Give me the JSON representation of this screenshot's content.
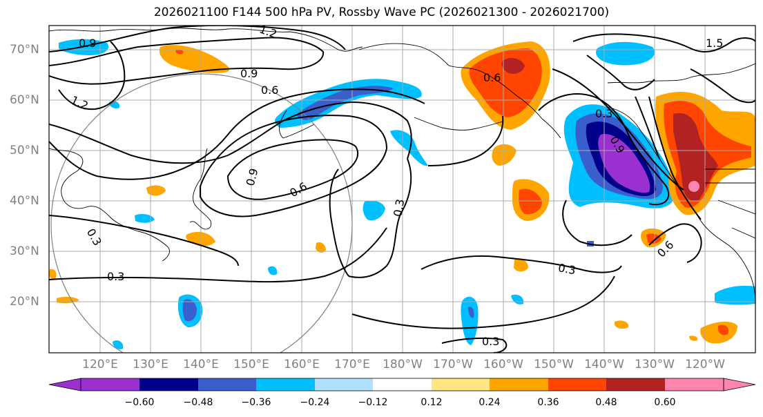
{
  "title": "2026021100 F144 500 hPa PV, Rossby Wave PC (2026021300 - 2026021700)",
  "lat_labels": [
    "70°N",
    "60°N",
    "50°N",
    "40°N",
    "30°N",
    "20°N"
  ],
  "lon_labels": [
    "120°E",
    "130°E",
    "140°E",
    "150°E",
    "160°E",
    "170°E",
    "180°W",
    "170°W",
    "160°W",
    "150°W",
    "140°W",
    "130°W",
    "120°W"
  ],
  "colorbar": {
    "ticks": [
      "−0.60",
      "−0.48",
      "−0.36",
      "−0.24",
      "−0.12",
      "0.12",
      "0.24",
      "0.36",
      "0.48",
      "0.60"
    ],
    "colors": [
      "#9b30d0",
      "#00008b",
      "#3a5fcd",
      "#00bfff",
      "#b0e2ff",
      "#ffffff",
      "#ffe680",
      "#ffa500",
      "#ff4500",
      "#b22222",
      "#ff85b0"
    ]
  },
  "contour_labels": [
    "1.2",
    "0.9",
    "0.6",
    "1.2",
    "0.9",
    "0.6",
    "0.3",
    "0.3",
    "0.3",
    "0.3",
    "0.9",
    "0.6",
    "0.3",
    "0.9",
    "0.6",
    "1.5",
    "0.3"
  ]
}
